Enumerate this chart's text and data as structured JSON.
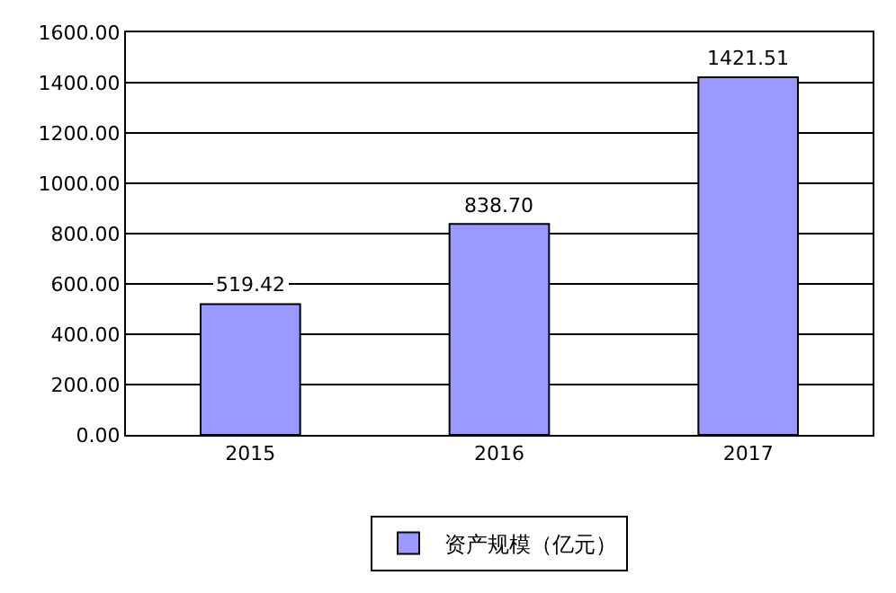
{
  "chart_data": {
    "type": "bar",
    "categories": [
      "2015",
      "2016",
      "2017"
    ],
    "series": [
      {
        "name": "资产规模（亿元）",
        "color": "#9999ff",
        "values": [
          519.42,
          838.7,
          1421.51
        ]
      }
    ],
    "value_labels": [
      "519.42",
      "838.70",
      "1421.51"
    ],
    "ylim": [
      0,
      1600
    ],
    "yticks": [
      {
        "value": 0,
        "label": "0.00"
      },
      {
        "value": 200,
        "label": "200.00"
      },
      {
        "value": 400,
        "label": "400.00"
      },
      {
        "value": 600,
        "label": "600.00"
      },
      {
        "value": 800,
        "label": "800.00"
      },
      {
        "value": 1000,
        "label": "1000.00"
      },
      {
        "value": 1200,
        "label": "1200.00"
      },
      {
        "value": 1400,
        "label": "1400.00"
      },
      {
        "value": 1600,
        "label": "1600.00"
      }
    ],
    "grid": "y",
    "legend": "bottom"
  }
}
